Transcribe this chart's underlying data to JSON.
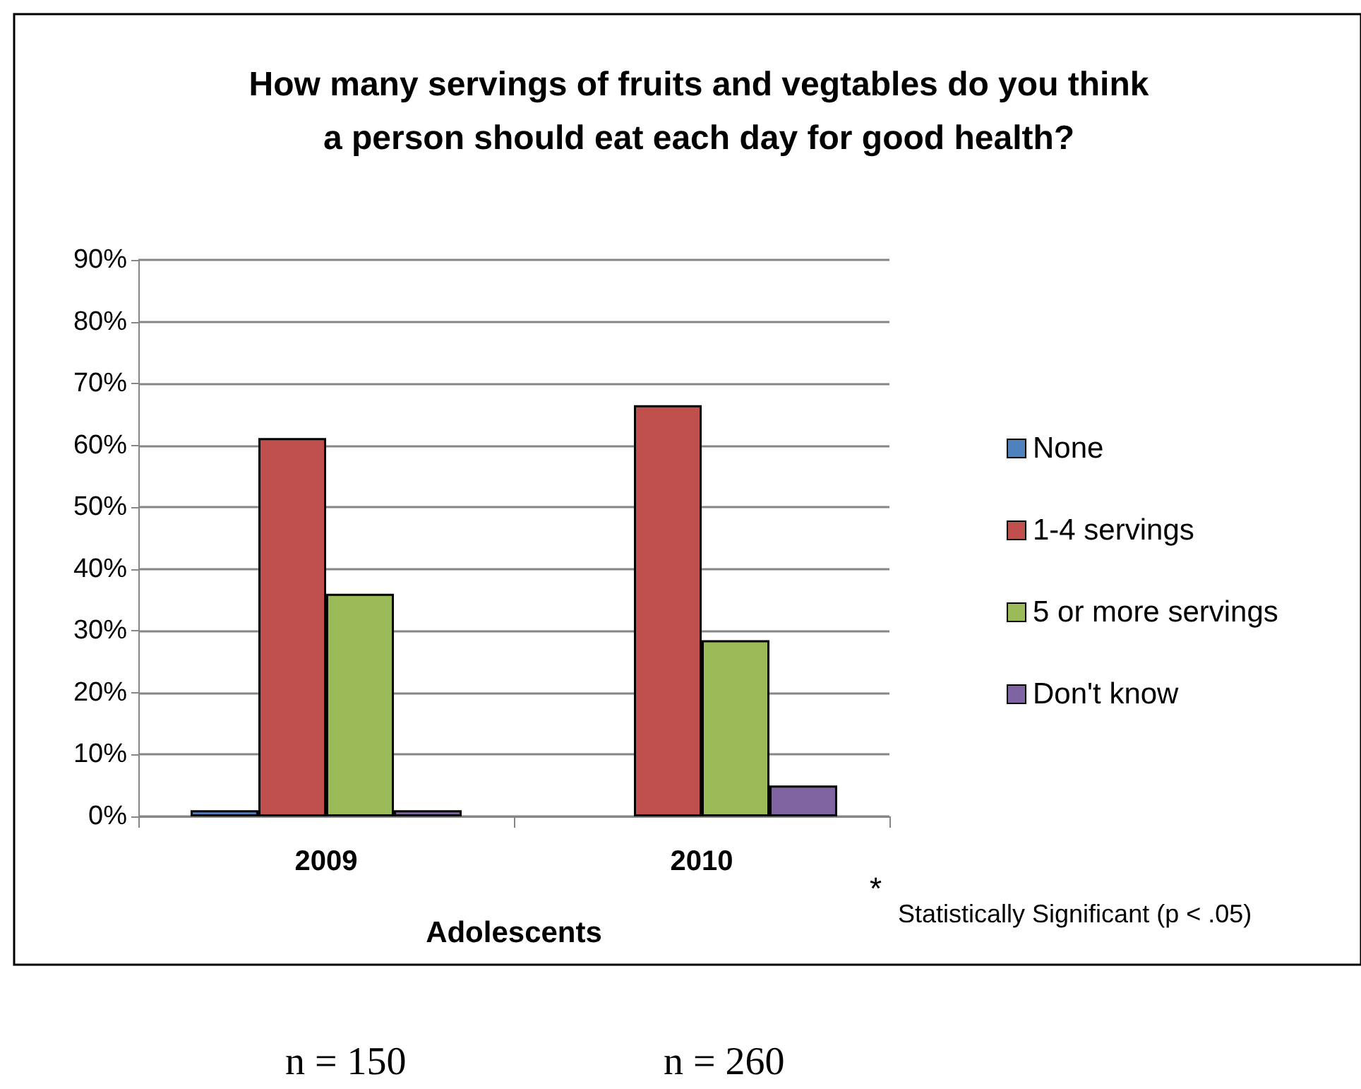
{
  "chart_data": {
    "type": "bar",
    "title": "How many servings of fruits and vegtables do you think\na person should eat each day for good health?",
    "xlabel": "Adolescents",
    "categories": [
      "2009",
      "2010"
    ],
    "series": [
      {
        "name": "None",
        "color": "#4f81bd",
        "values": [
          1,
          0
        ]
      },
      {
        "name": "1-4 servings",
        "color": "#c0504d",
        "values": [
          61.2,
          66.5
        ]
      },
      {
        "name": "5 or more servings",
        "color": "#9bbb59",
        "values": [
          36,
          28.5
        ]
      },
      {
        "name": "Don't know",
        "color": "#8064a2",
        "values": [
          1,
          5
        ]
      }
    ],
    "ylim": [
      0,
      90
    ],
    "yticks": [
      {
        "value": 0,
        "label": "0%"
      },
      {
        "value": 10,
        "label": "10%"
      },
      {
        "value": 20,
        "label": "20%"
      },
      {
        "value": 30,
        "label": "30%"
      },
      {
        "value": 40,
        "label": "40%"
      },
      {
        "value": 50,
        "label": "50%"
      },
      {
        "value": 60,
        "label": "60%"
      },
      {
        "value": 70,
        "label": "70%"
      },
      {
        "value": 80,
        "label": "80%"
      },
      {
        "value": 90,
        "label": "90%"
      }
    ],
    "grid": "y",
    "legend": "right",
    "annotations": [
      "*",
      "Statistically Significant (p < .05)",
      "n = 150",
      "n = 260"
    ]
  }
}
